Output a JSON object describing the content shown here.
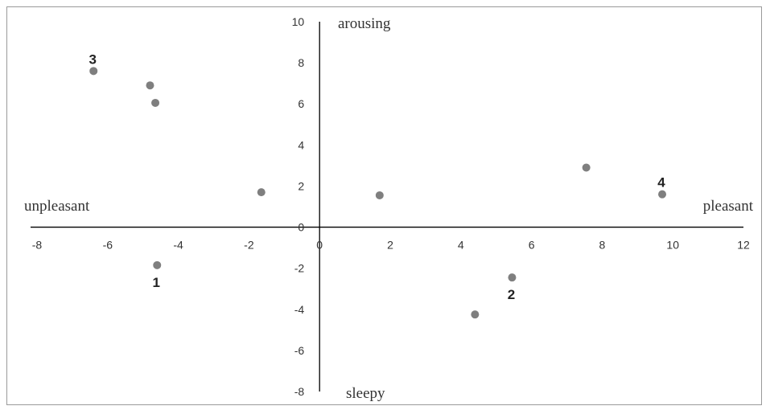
{
  "chart_data": {
    "type": "scatter",
    "xlim": [
      -8,
      12
    ],
    "ylim": [
      -8,
      10
    ],
    "x_ticks": [
      -8,
      -6,
      -4,
      -2,
      0,
      2,
      4,
      6,
      8,
      10,
      12
    ],
    "y_ticks": [
      -8,
      -6,
      -4,
      -2,
      0,
      2,
      4,
      6,
      8,
      10
    ],
    "axis_labels": {
      "top": "arousing",
      "bottom": "sleepy",
      "left": "unpleasant",
      "right": "pleasant"
    },
    "grid": false,
    "point_color": "#7f7f7f",
    "points": [
      {
        "x": -6.4,
        "y": 7.6,
        "label": "3"
      },
      {
        "x": -4.8,
        "y": 6.9,
        "label": ""
      },
      {
        "x": -4.65,
        "y": 6.05,
        "label": ""
      },
      {
        "x": -1.65,
        "y": 1.7,
        "label": ""
      },
      {
        "x": -4.6,
        "y": -1.85,
        "label": "1"
      },
      {
        "x": 1.7,
        "y": 1.55,
        "label": ""
      },
      {
        "x": 4.4,
        "y": -4.25,
        "label": ""
      },
      {
        "x": 5.45,
        "y": -2.45,
        "label": "2"
      },
      {
        "x": 7.55,
        "y": 2.9,
        "label": ""
      },
      {
        "x": 9.7,
        "y": 1.6,
        "label": "4"
      }
    ]
  }
}
